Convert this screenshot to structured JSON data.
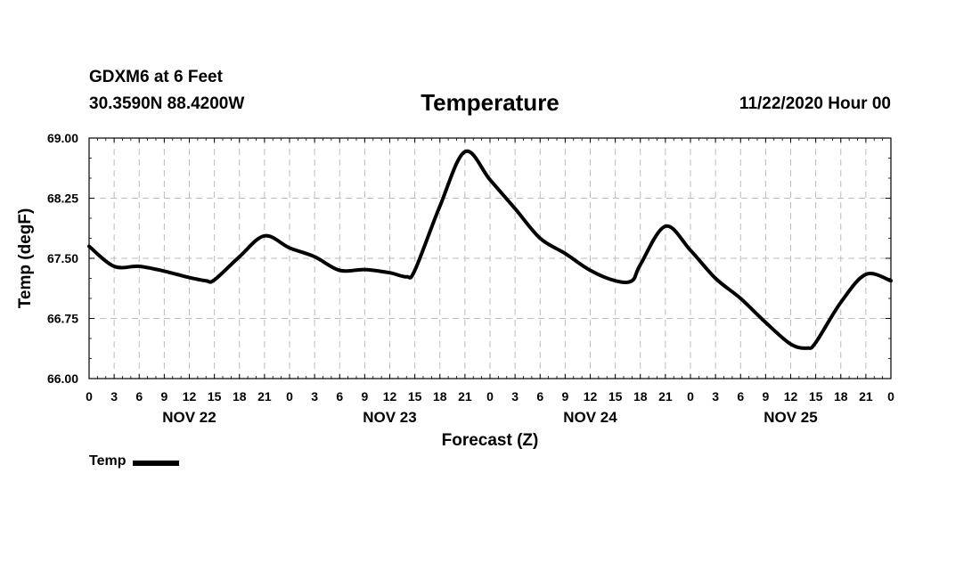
{
  "header": {
    "station": "GDXM6 at 6 Feet",
    "coords": "30.3590N 88.4200W",
    "datetime": "11/22/2020 Hour 00"
  },
  "colors": {
    "line": "#000000",
    "grid": "#bbbbbb"
  },
  "chart_data": {
    "type": "line",
    "title": "Temperature",
    "xlabel": "Forecast (Z)",
    "ylabel": "Temp (degF)",
    "ylim": [
      66.0,
      69.0
    ],
    "yticks": [
      "69.00",
      "68.25",
      "67.50",
      "66.75",
      "66.00"
    ],
    "xticks": [
      "0",
      "3",
      "6",
      "9",
      "12",
      "15",
      "18",
      "21",
      "0",
      "3",
      "6",
      "9",
      "12",
      "15",
      "18",
      "21",
      "0",
      "3",
      "6",
      "9",
      "12",
      "15",
      "18",
      "21",
      "0",
      "3",
      "6",
      "9",
      "12",
      "15",
      "18",
      "21",
      "0"
    ],
    "day_labels": [
      {
        "label": "NOV 22",
        "hour": 12
      },
      {
        "label": "NOV 23",
        "hour": 36
      },
      {
        "label": "NOV 24",
        "hour": 60
      },
      {
        "label": "NOV 25",
        "hour": 84
      }
    ],
    "xlim_hours": [
      0,
      96
    ],
    "grid": true,
    "legend": "bottom-left",
    "series": [
      {
        "name": "Temp",
        "x_hours": [
          0,
          3,
          6,
          9,
          12,
          14,
          15,
          18,
          21,
          24,
          27,
          30,
          33,
          36,
          38,
          39,
          42,
          45,
          48,
          51,
          54,
          57,
          60,
          63,
          65,
          66,
          69,
          72,
          75,
          78,
          81,
          84,
          86,
          87,
          90,
          93,
          96
        ],
        "values": [
          67.65,
          67.4,
          67.4,
          67.34,
          67.26,
          67.22,
          67.23,
          67.52,
          67.78,
          67.63,
          67.52,
          67.35,
          67.36,
          67.32,
          67.27,
          67.35,
          68.15,
          68.83,
          68.48,
          68.12,
          67.75,
          67.56,
          67.35,
          67.22,
          67.22,
          67.42,
          67.9,
          67.6,
          67.25,
          67.0,
          66.7,
          66.43,
          66.38,
          66.45,
          66.95,
          67.3,
          67.22
        ]
      }
    ]
  }
}
